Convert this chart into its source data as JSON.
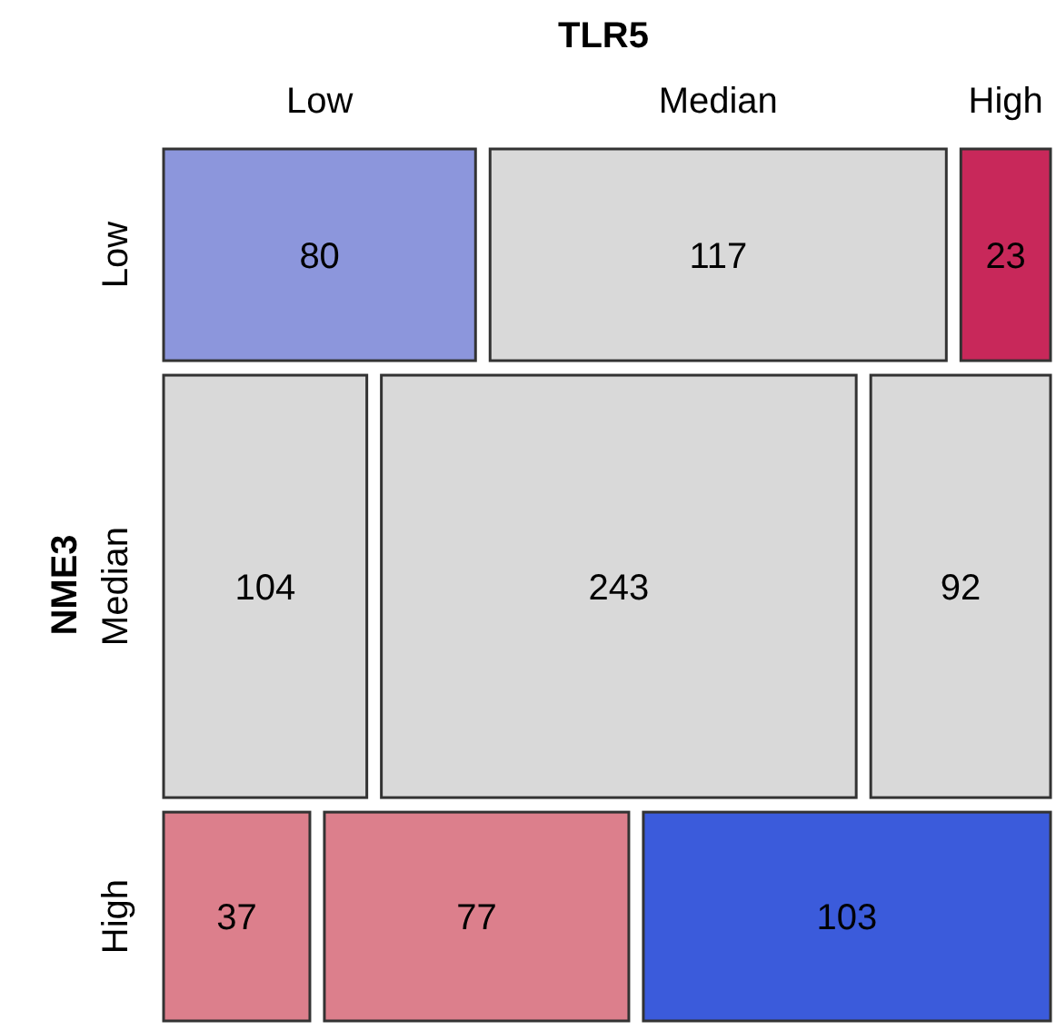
{
  "chart_data": {
    "type": "other",
    "xlabel": "TLR5",
    "ylabel": "NME3",
    "categories": [
      "Low",
      "Median",
      "High"
    ],
    "series": [
      {
        "name": "Low",
        "values": [
          80,
          117,
          23
        ],
        "colors": [
          "#8c96dc",
          "#d9d9d9",
          "#c8285a"
        ]
      },
      {
        "name": "Median",
        "values": [
          104,
          243,
          92
        ],
        "colors": [
          "#d9d9d9",
          "#d9d9d9",
          "#d9d9d9"
        ]
      },
      {
        "name": "High",
        "values": [
          37,
          77,
          103
        ],
        "colors": [
          "#dc7f8c",
          "#dc7f8c",
          "#3b5bdb"
        ]
      }
    ],
    "data_labels": true
  }
}
